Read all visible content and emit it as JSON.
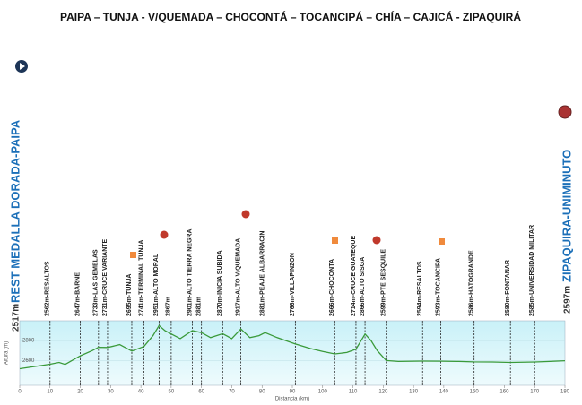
{
  "chart_data": {
    "type": "line",
    "title": "PAIPA – TUNJA - V/QUEMADA – CHOCONTÁ – TOCANCIPÁ – CHÍA – CAJICÁ - ZIPAQUIRÁ",
    "x_label": "Distancia (km)",
    "y_label": "Altura (m)",
    "start": {
      "label": "REST MEDALLA DORADA-PAIPA",
      "altitude": "2517m"
    },
    "end": {
      "label": "ZIPAQUIRA-UNIMINUTO",
      "altitude": "2597m"
    },
    "x": [
      0,
      5,
      10,
      13,
      15,
      20,
      24,
      26,
      29,
      33,
      37,
      41,
      44,
      46,
      48,
      50,
      53,
      57,
      60,
      63,
      67,
      70,
      73,
      76,
      79,
      81,
      85,
      91,
      96,
      100,
      104,
      108,
      111,
      114,
      116,
      118,
      121,
      125,
      133,
      139,
      145,
      150,
      156,
      162,
      170,
      175,
      180
    ],
    "values": [
      2517,
      2540,
      2562,
      2580,
      2560,
      2647,
      2700,
      2733,
      2731,
      2760,
      2695,
      2741,
      2850,
      2951,
      2900,
      2867,
      2820,
      2901,
      2881,
      2830,
      2870,
      2820,
      2917,
      2830,
      2850,
      2881,
      2830,
      2766,
      2720,
      2690,
      2666,
      2680,
      2714,
      2866,
      2800,
      2700,
      2599,
      2590,
      2594,
      2593,
      2590,
      2586,
      2585,
      2580,
      2585,
      2590,
      2597
    ],
    "color": "#3a9a3a",
    "xlim": [
      0,
      180
    ],
    "ylim": [
      2350,
      3000
    ],
    "xticks": [
      0,
      10,
      20,
      30,
      40,
      50,
      60,
      70,
      80,
      90,
      100,
      110,
      120,
      130,
      140,
      150,
      160,
      170,
      180
    ],
    "yticks": [
      2600,
      2800
    ],
    "waypoints": [
      {
        "km": 10,
        "label": "2562m-RESALTOS"
      },
      {
        "km": 20,
        "label": "2647m-BARNE"
      },
      {
        "km": 26,
        "label": "2733m-LAS GEMELAS"
      },
      {
        "km": 29,
        "label": "2731m-CRUCE VARIANTE"
      },
      {
        "km": 37,
        "label": "2695m-TUNJA"
      },
      {
        "km": 41,
        "label": "2741m-TERMINAL TUNJA"
      },
      {
        "km": 46,
        "label": "2951m-ALTO MORAL"
      },
      {
        "km": 50,
        "label": "2867m"
      },
      {
        "km": 57,
        "label": "2901m-ALTO TIERRA NEGRA"
      },
      {
        "km": 60,
        "label": "2881m"
      },
      {
        "km": 67,
        "label": "2870m-INICIA SUBIDA"
      },
      {
        "km": 73,
        "label": "2917m-ALTO V/QUEMADA"
      },
      {
        "km": 81,
        "label": "2881m-PEAJE ALBARRACIN"
      },
      {
        "km": 91,
        "label": "2766m-VILLAPINZON"
      },
      {
        "km": 104,
        "label": "2666m-CHOCONTA"
      },
      {
        "km": 111,
        "label": "2714m-CRUCE GUATEQUE"
      },
      {
        "km": 114,
        "label": "2866m-ALTO SISGA"
      },
      {
        "km": 121,
        "label": "2599m-PTE SESQUILE"
      },
      {
        "km": 133,
        "label": "2594m-RESALTOS"
      },
      {
        "km": 139,
        "label": "2593m-TOCANCIPA"
      },
      {
        "km": 150,
        "label": "2586m-HATOGRANDE"
      },
      {
        "km": 162,
        "label": "2580m-FONTANAR"
      },
      {
        "km": 170,
        "label": "2585m-UNIVERSIDAD MILITAR"
      }
    ]
  }
}
